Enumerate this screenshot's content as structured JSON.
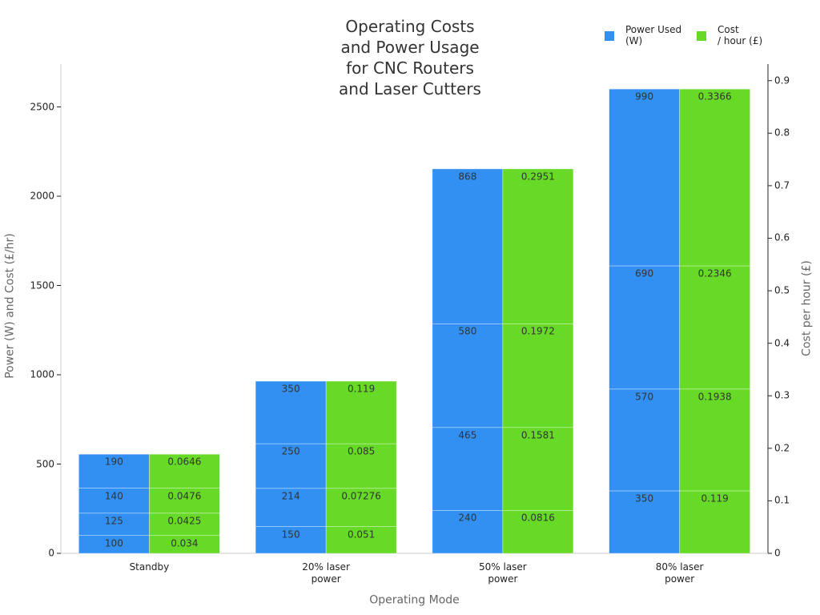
{
  "chart_data": {
    "type": "stacked_bar_dual",
    "title": "Operating Costs\nand Power Usage\nfor CNC Routers\nand Laser Cutters",
    "xlabel": "Operating Mode",
    "ylabel": "Power (W) and Cost (£/hr)",
    "y2label": "Cost per hour (£)",
    "categories": [
      "Standby",
      "20% laser\npower",
      "50% laser\npower",
      "80% laser\npower"
    ],
    "series": [
      {
        "name": "Power Used\n(W)",
        "color": "#3290f2",
        "axis": "y",
        "values": [
          [
            100,
            125,
            140,
            190
          ],
          [
            150,
            214,
            250,
            350
          ],
          [
            240,
            465,
            580,
            868
          ],
          [
            350,
            570,
            690,
            990
          ]
        ]
      },
      {
        "name": "Cost\n/ hour (£)",
        "color": "#66da26",
        "axis": "y2",
        "values": [
          [
            0.034,
            0.0425,
            0.0476,
            0.0646
          ],
          [
            0.051,
            0.07276,
            0.085,
            0.119
          ],
          [
            0.0816,
            0.1581,
            0.1972,
            0.2951
          ],
          [
            0.119,
            0.1938,
            0.2346,
            0.3366
          ]
        ]
      }
    ],
    "ylim": [
      0,
      2740
    ],
    "yticks": [
      0,
      500,
      1000,
      1500,
      2000,
      2500
    ],
    "y2lim": [
      0,
      0.9316
    ],
    "y2ticks": [
      0,
      0.1,
      0.2,
      0.3,
      0.4,
      0.5,
      0.6,
      0.7,
      0.8,
      0.9
    ],
    "legend": "top-right"
  }
}
